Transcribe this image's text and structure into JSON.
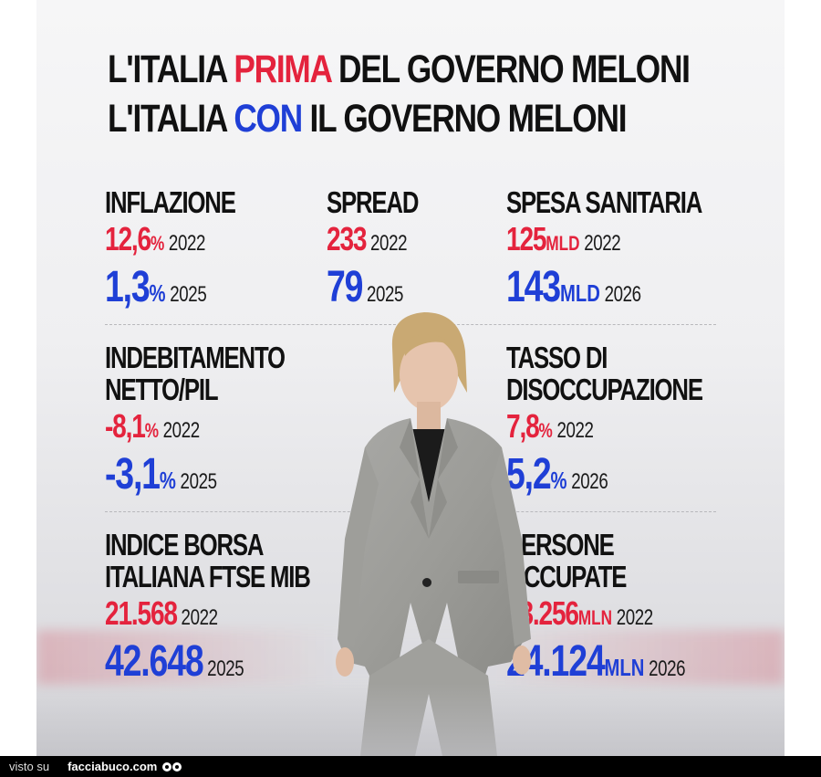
{
  "headline": {
    "line1_pre": "L'ITALIA ",
    "line1_hl": "PRIMA",
    "line1_post": " DEL GOVERNO MELONI",
    "line2_pre": "L'ITALIA ",
    "line2_hl": "CON",
    "line2_post": " IL GOVERNO MELONI"
  },
  "stats": {
    "inflazione": {
      "label": "INFLAZIONE",
      "before": "12,6",
      "before_unit": "%",
      "before_year": "2022",
      "after": "1,3",
      "after_unit": "%",
      "after_year": "2025"
    },
    "spread": {
      "label": "SPREAD",
      "before": "233",
      "before_unit": "",
      "before_year": "2022",
      "after": "79",
      "after_unit": "",
      "after_year": "2025"
    },
    "spesa": {
      "label": "SPESA SANITARIA",
      "before": "125",
      "before_unit": "MLD",
      "before_year": "2022",
      "after": "143",
      "after_unit": "MLD",
      "after_year": "2026"
    },
    "indebitamento": {
      "label1": "INDEBITAMENTO",
      "label2": "NETTO/PIL",
      "before": "-8,1",
      "before_unit": "%",
      "before_year": "2022",
      "after": "-3,1",
      "after_unit": "%",
      "after_year": "2025"
    },
    "disoccupazione": {
      "label1": "TASSO DI",
      "label2": "DISOCCUPAZIONE",
      "before": "7,8",
      "before_unit": "%",
      "before_year": "2022",
      "after": "5,2",
      "after_unit": "%",
      "after_year": "2026"
    },
    "borsa": {
      "label1": "INDICE BORSA",
      "label2": "ITALIANA FTSE MIB",
      "before": "21.568",
      "before_unit": "",
      "before_year": "2022",
      "after": "42.648",
      "after_unit": "",
      "after_year": "2025"
    },
    "occupate": {
      "label1": "PERSONE",
      "label2": "OCCUPATE",
      "before": "23.256",
      "before_unit": "MLN",
      "before_year": "2022",
      "after": "24.124",
      "after_unit": "MLN",
      "after_year": "2026"
    }
  },
  "colors": {
    "red": "#e4233d",
    "blue": "#1f3fd6"
  },
  "footer": {
    "seen_on": "visto su",
    "site": "facciabuco.com"
  }
}
